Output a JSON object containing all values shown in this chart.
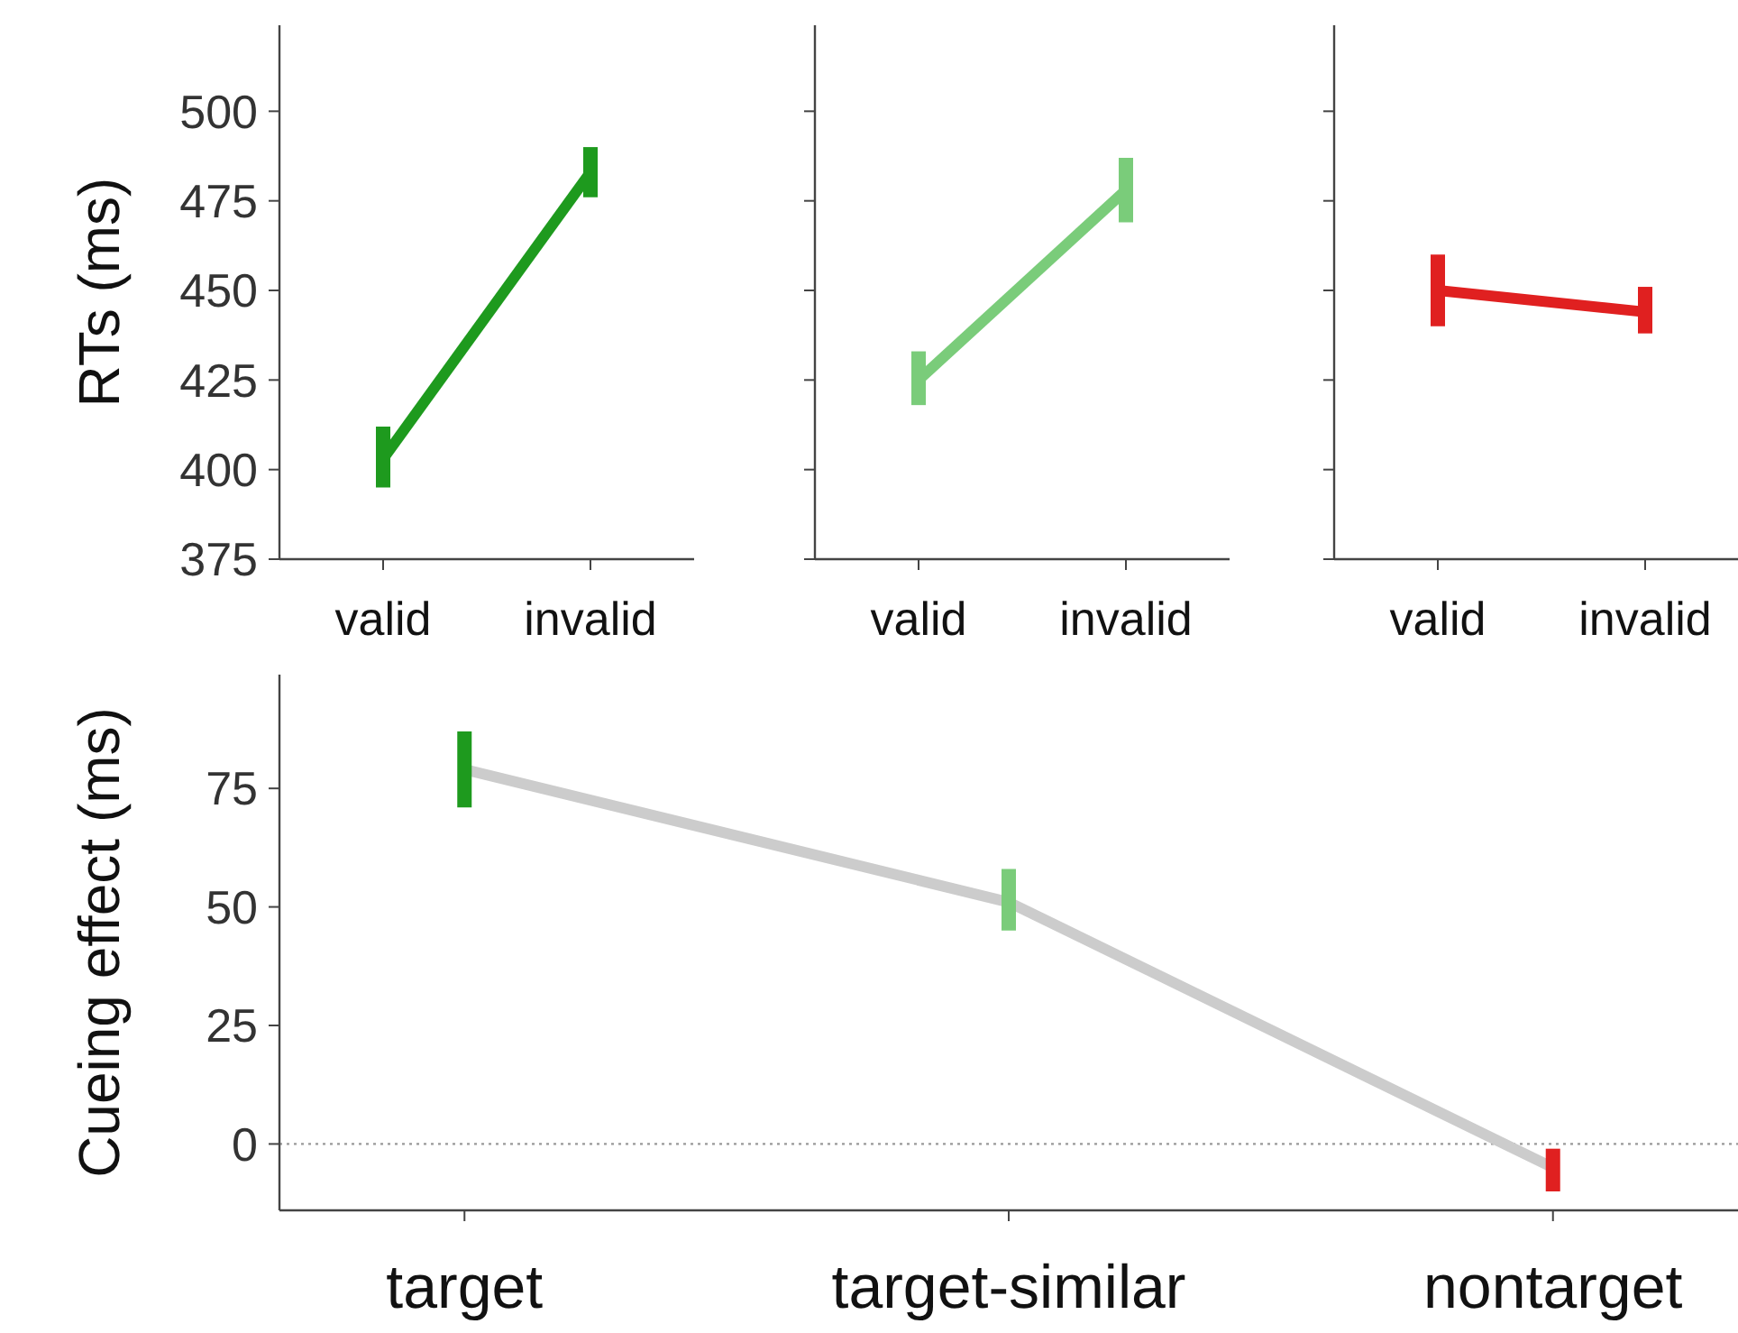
{
  "chart_data": [
    {
      "type": "line",
      "ylabel": "RTs (ms)",
      "categories": [
        "valid",
        "invalid"
      ],
      "ylim": [
        375,
        524
      ],
      "yticks": [
        375,
        400,
        425,
        450,
        475,
        500
      ],
      "series": [
        {
          "color": "#1e9a1e",
          "values": [
            403,
            483
          ],
          "errors": [
            [
              395,
              412
            ],
            [
              476,
              490
            ]
          ]
        }
      ]
    },
    {
      "type": "line",
      "categories": [
        "valid",
        "invalid"
      ],
      "ylim": [
        375,
        524
      ],
      "yticks": [
        375,
        400,
        425,
        450,
        475,
        500
      ],
      "tick_labels": "x",
      "series": [
        {
          "color": "#7acc7a",
          "values": [
            425,
            478
          ],
          "errors": [
            [
              418,
              433
            ],
            [
              469,
              487
            ]
          ]
        }
      ]
    },
    {
      "type": "line",
      "categories": [
        "valid",
        "invalid"
      ],
      "ylim": [
        375,
        524
      ],
      "yticks": [
        375,
        400,
        425,
        450,
        475,
        500
      ],
      "tick_labels": "x",
      "series": [
        {
          "color": "#e02020",
          "values": [
            450,
            444
          ],
          "errors": [
            [
              440,
              460
            ],
            [
              438,
              451
            ]
          ]
        }
      ]
    },
    {
      "type": "line",
      "ylabel": "Cueing effect (ms)",
      "categories": [
        "target",
        "target-similar",
        "nontarget"
      ],
      "ylim": [
        -14,
        99
      ],
      "yticks": [
        0,
        25,
        50,
        75
      ],
      "ref_lines": [
        {
          "axis": "y",
          "value": 0,
          "color": "#999999",
          "line_style": "dotted"
        }
      ],
      "series": [
        {
          "color": "#cccccc",
          "colors": [
            "#1e9a1e",
            "#7acc7a",
            "#e02020"
          ],
          "values": [
            79,
            51,
            -5
          ],
          "errors": [
            [
              71,
              87
            ],
            [
              45,
              58
            ],
            [
              -10,
              -1
            ]
          ]
        }
      ]
    }
  ]
}
